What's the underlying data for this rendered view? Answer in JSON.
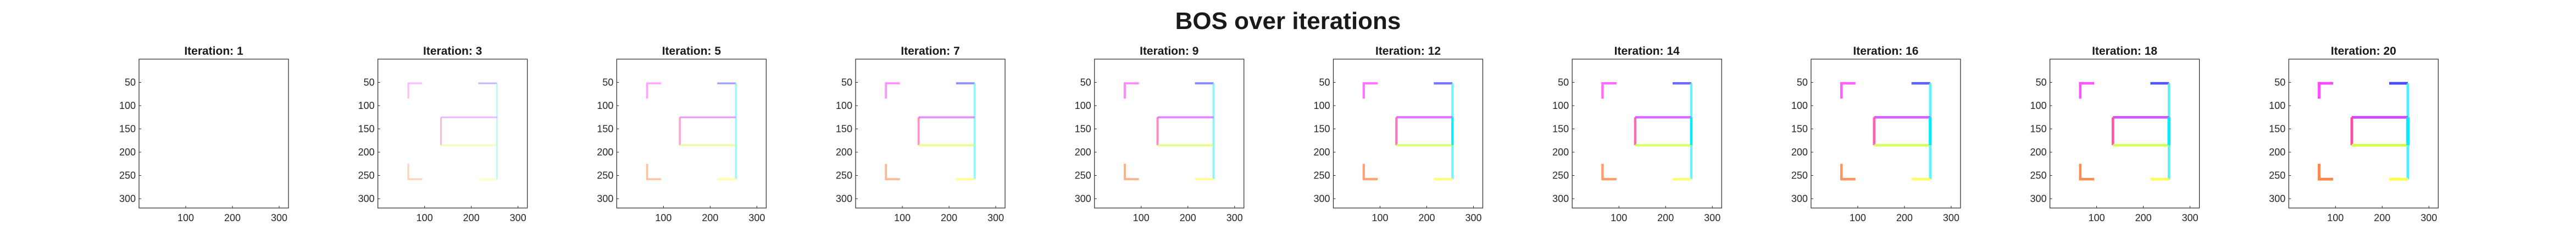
{
  "figure": {
    "title": "BOS over iterations"
  },
  "chart_data": {
    "type": "image-grid",
    "title": "BOS over iterations",
    "x_ticks": [
      100,
      200,
      300
    ],
    "y_ticks": [
      50,
      100,
      150,
      200,
      250,
      300
    ],
    "xlim": [
      0,
      320
    ],
    "ylim": [
      320,
      0
    ],
    "colormap": "hsv, rainbow along shape outline",
    "panels": [
      {
        "title": "Iteration: 1",
        "iteration": 1,
        "intensity": 0.0
      },
      {
        "title": "Iteration: 3",
        "iteration": 3,
        "intensity": 0.35
      },
      {
        "title": "Iteration: 5",
        "iteration": 5,
        "intensity": 0.5
      },
      {
        "title": "Iteration: 7",
        "iteration": 7,
        "intensity": 0.6
      },
      {
        "title": "Iteration: 9",
        "iteration": 9,
        "intensity": 0.65
      },
      {
        "title": "Iteration: 12",
        "iteration": 12,
        "intensity": 0.75
      },
      {
        "title": "Iteration: 14",
        "iteration": 14,
        "intensity": 0.8
      },
      {
        "title": "Iteration: 16",
        "iteration": 16,
        "intensity": 0.85
      },
      {
        "title": "Iteration: 18",
        "iteration": 18,
        "intensity": 0.9
      },
      {
        "title": "Iteration: 20",
        "iteration": 20,
        "intensity": 0.95
      }
    ]
  }
}
